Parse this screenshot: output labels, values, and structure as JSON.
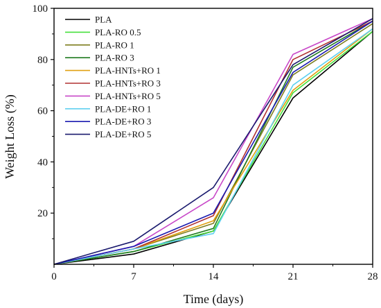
{
  "chart_data": {
    "type": "line",
    "title": "",
    "xlabel": "Time (days)",
    "ylabel": "Weight Loss (%)",
    "x": [
      0,
      7,
      14,
      21,
      28
    ],
    "xlim": [
      0,
      28
    ],
    "ylim": [
      0,
      100
    ],
    "xticks": [
      "0",
      "7",
      "14",
      "21",
      "28"
    ],
    "yticks": [
      "20",
      "40",
      "60",
      "80",
      "100"
    ],
    "ytick_values": [
      20,
      40,
      60,
      80,
      100
    ],
    "grid": false,
    "legend_position": "top-left",
    "series": [
      {
        "name": "PLA",
        "color": "#000000",
        "values": [
          0,
          4,
          13,
          65,
          91
        ]
      },
      {
        "name": "PLA-RO 0.5",
        "color": "#44e03a",
        "values": [
          0,
          5,
          13,
          67,
          91
        ]
      },
      {
        "name": "PLA-RO 1",
        "color": "#7d7d1e",
        "values": [
          0,
          6,
          16,
          74,
          94
        ]
      },
      {
        "name": "PLA-RO 3",
        "color": "#1f7a1f",
        "values": [
          0,
          5,
          14,
          77,
          95
        ]
      },
      {
        "name": "PLA-HNTs+RO 1",
        "color": "#e0a010",
        "values": [
          0,
          6,
          17,
          68,
          92
        ]
      },
      {
        "name": "PLA-HNTs+RO 3",
        "color": "#b03030",
        "values": [
          0,
          6,
          19,
          80,
          95
        ]
      },
      {
        "name": "PLA-HNTs+RO 5",
        "color": "#c848c8",
        "values": [
          0,
          7,
          26,
          82,
          96
        ]
      },
      {
        "name": "PLA-DE+RO 1",
        "color": "#5fd0f0",
        "values": [
          0,
          6,
          12,
          70,
          92
        ]
      },
      {
        "name": "PLA-DE+RO 3",
        "color": "#1a1ab0",
        "values": [
          0,
          7,
          20,
          75,
          95
        ]
      },
      {
        "name": "PLA-DE+RO 5",
        "color": "#1a1a6e",
        "values": [
          0,
          9,
          30,
          78,
          96
        ]
      }
    ]
  }
}
